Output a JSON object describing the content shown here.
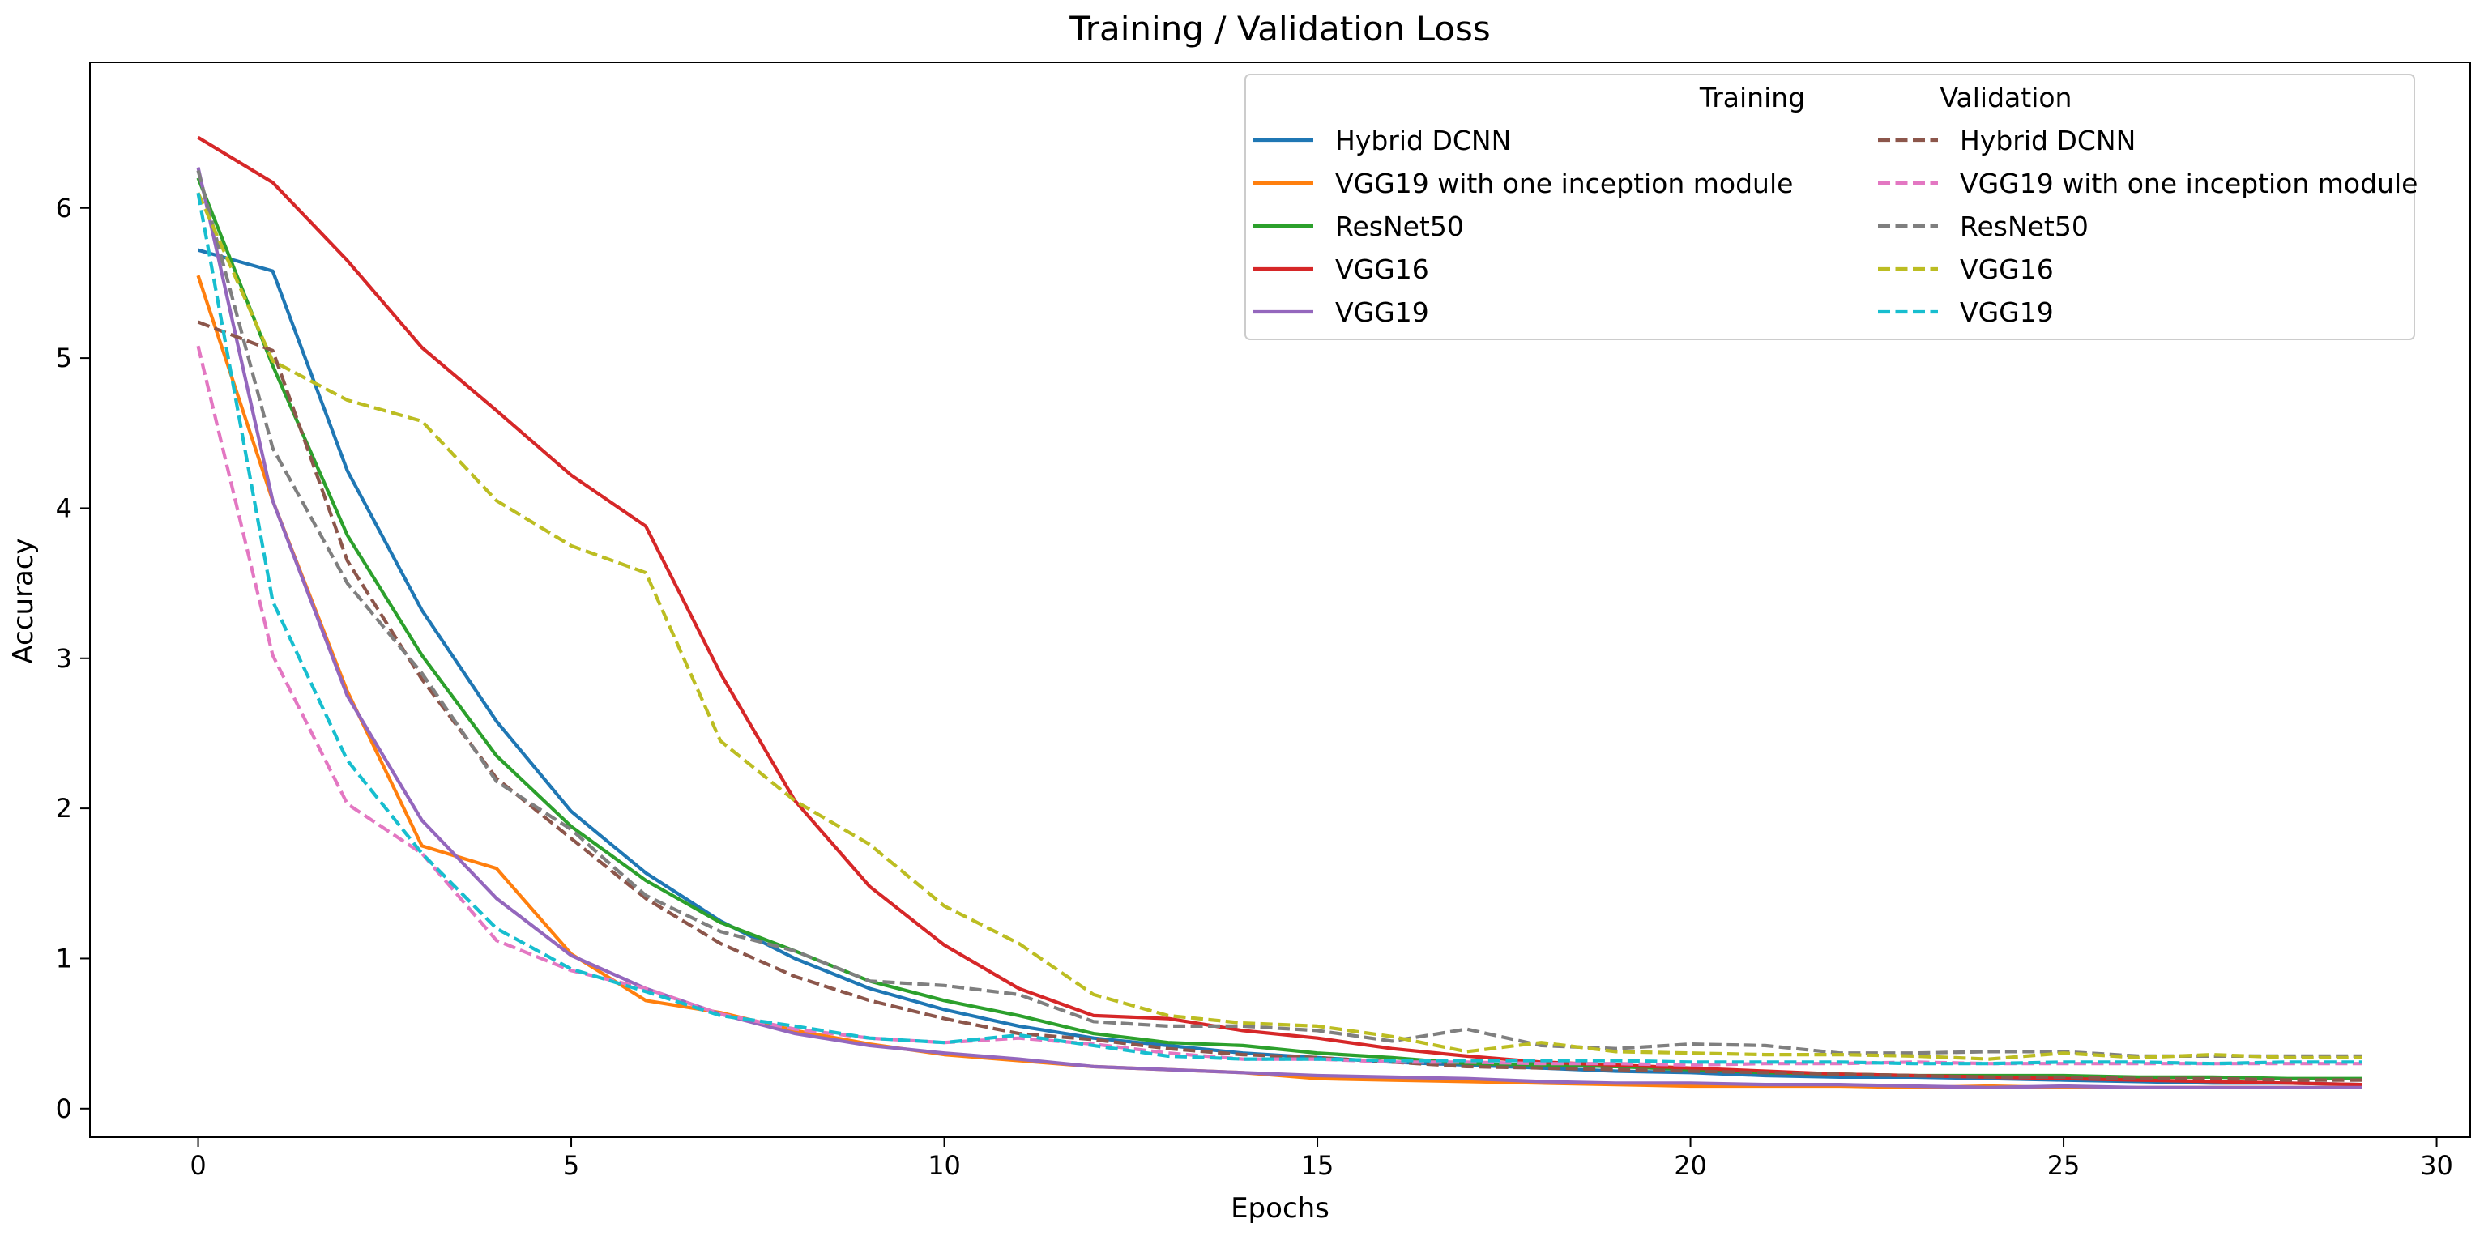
{
  "chart_data": {
    "type": "line",
    "title": "Training / Validation Loss",
    "xlabel": "Epochs",
    "ylabel": "Accuracy",
    "xlim": [
      -1.45,
      30.45
    ],
    "ylim": [
      -0.19,
      6.97
    ],
    "xticks": [
      0,
      5,
      10,
      15,
      20,
      25,
      30
    ],
    "yticks": [
      0,
      1,
      2,
      3,
      4,
      5,
      6
    ],
    "grid": false,
    "legend": {
      "placement": "top-right",
      "training_header": "Training",
      "validation_header": "Validation"
    },
    "x": [
      0,
      1,
      2,
      3,
      4,
      5,
      6,
      7,
      8,
      9,
      10,
      11,
      12,
      13,
      14,
      15,
      16,
      17,
      18,
      19,
      20,
      21,
      22,
      23,
      24,
      25,
      26,
      27,
      28,
      29
    ],
    "series": [
      {
        "name": "Hybrid DCNN",
        "group": "Training",
        "color": "#1f77b4",
        "dash": "solid",
        "values": [
          5.72,
          5.58,
          4.25,
          3.32,
          2.58,
          1.98,
          1.57,
          1.25,
          1.0,
          0.8,
          0.66,
          0.55,
          0.47,
          0.42,
          0.37,
          0.34,
          0.31,
          0.29,
          0.27,
          0.25,
          0.24,
          0.22,
          0.21,
          0.21,
          0.2,
          0.19,
          0.18,
          0.17,
          0.17,
          0.16
        ]
      },
      {
        "name": "VGG19 with one inception module",
        "group": "Training",
        "color": "#ff7f0e",
        "dash": "solid",
        "values": [
          5.55,
          4.05,
          2.78,
          1.75,
          1.6,
          1.03,
          0.72,
          0.64,
          0.52,
          0.43,
          0.36,
          0.32,
          0.28,
          0.26,
          0.24,
          0.2,
          0.19,
          0.18,
          0.17,
          0.16,
          0.15,
          0.15,
          0.15,
          0.14,
          0.15,
          0.14,
          0.14,
          0.14,
          0.14,
          0.14
        ]
      },
      {
        "name": "ResNet50",
        "group": "Training",
        "color": "#2ca02c",
        "dash": "solid",
        "values": [
          6.2,
          4.95,
          3.82,
          3.02,
          2.35,
          1.88,
          1.52,
          1.24,
          1.05,
          0.85,
          0.72,
          0.62,
          0.5,
          0.44,
          0.42,
          0.37,
          0.34,
          0.3,
          0.29,
          0.28,
          0.26,
          0.24,
          0.23,
          0.22,
          0.22,
          0.22,
          0.21,
          0.21,
          0.2,
          0.2
        ]
      },
      {
        "name": "VGG16",
        "group": "Training",
        "color": "#d62728",
        "dash": "solid",
        "values": [
          6.47,
          6.17,
          5.65,
          5.07,
          4.65,
          4.22,
          3.88,
          2.9,
          2.05,
          1.48,
          1.09,
          0.8,
          0.62,
          0.6,
          0.52,
          0.47,
          0.4,
          0.35,
          0.31,
          0.29,
          0.27,
          0.25,
          0.23,
          0.22,
          0.21,
          0.2,
          0.19,
          0.18,
          0.17,
          0.16
        ]
      },
      {
        "name": "VGG19",
        "group": "Training",
        "color": "#9467bd",
        "dash": "solid",
        "values": [
          6.27,
          4.05,
          2.75,
          1.92,
          1.4,
          1.02,
          0.8,
          0.63,
          0.5,
          0.42,
          0.37,
          0.33,
          0.28,
          0.26,
          0.24,
          0.22,
          0.21,
          0.2,
          0.18,
          0.17,
          0.17,
          0.16,
          0.16,
          0.15,
          0.14,
          0.15,
          0.14,
          0.14,
          0.14,
          0.14
        ]
      },
      {
        "name": "Hybrid DCNN",
        "group": "Validation",
        "color": "#8c564b",
        "dash": "dashed",
        "values": [
          5.24,
          5.05,
          3.65,
          2.86,
          2.2,
          1.8,
          1.4,
          1.1,
          0.88,
          0.72,
          0.6,
          0.5,
          0.46,
          0.4,
          0.36,
          0.34,
          0.31,
          0.28,
          0.27,
          0.26,
          0.25,
          0.24,
          0.23,
          0.22,
          0.21,
          0.21,
          0.2,
          0.2,
          0.19,
          0.19
        ]
      },
      {
        "name": "VGG19 with one inception module",
        "group": "Validation",
        "color": "#e377c2",
        "dash": "dashed",
        "values": [
          5.08,
          3.02,
          2.03,
          1.7,
          1.12,
          0.92,
          0.8,
          0.63,
          0.53,
          0.47,
          0.44,
          0.47,
          0.43,
          0.37,
          0.33,
          0.33,
          0.31,
          0.31,
          0.3,
          0.3,
          0.29,
          0.3,
          0.3,
          0.31,
          0.3,
          0.3,
          0.3,
          0.3,
          0.3,
          0.3
        ]
      },
      {
        "name": "ResNet50",
        "group": "Validation",
        "color": "#7f7f7f",
        "dash": "dashed",
        "values": [
          6.25,
          4.4,
          3.5,
          2.9,
          2.18,
          1.86,
          1.42,
          1.18,
          1.05,
          0.85,
          0.82,
          0.76,
          0.58,
          0.55,
          0.55,
          0.52,
          0.45,
          0.53,
          0.42,
          0.4,
          0.43,
          0.42,
          0.37,
          0.37,
          0.38,
          0.38,
          0.35,
          0.35,
          0.35,
          0.35
        ]
      },
      {
        "name": "VGG16",
        "group": "Validation",
        "color": "#bcbd22",
        "dash": "dashed",
        "values": [
          6.1,
          4.98,
          4.72,
          4.58,
          4.05,
          3.75,
          3.57,
          2.45,
          2.05,
          1.76,
          1.35,
          1.1,
          0.76,
          0.62,
          0.57,
          0.55,
          0.48,
          0.38,
          0.44,
          0.38,
          0.37,
          0.36,
          0.36,
          0.35,
          0.33,
          0.37,
          0.34,
          0.36,
          0.34,
          0.34
        ]
      },
      {
        "name": "VGG19",
        "group": "Validation",
        "color": "#17becf",
        "dash": "dashed",
        "values": [
          6.1,
          3.38,
          2.32,
          1.7,
          1.2,
          0.93,
          0.78,
          0.62,
          0.55,
          0.47,
          0.44,
          0.49,
          0.42,
          0.35,
          0.33,
          0.33,
          0.32,
          0.32,
          0.32,
          0.32,
          0.31,
          0.31,
          0.31,
          0.3,
          0.3,
          0.31,
          0.31,
          0.3,
          0.31,
          0.31
        ]
      }
    ]
  }
}
